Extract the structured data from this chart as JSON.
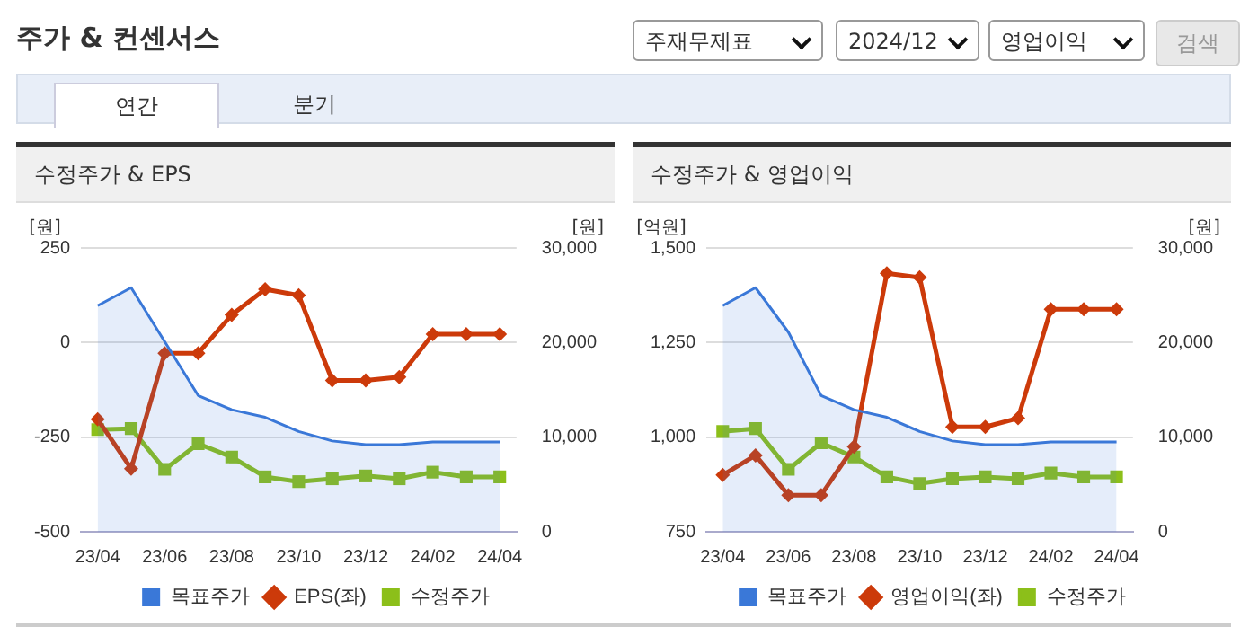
{
  "chart_data": [
    {
      "type": "other",
      "title": "주가 & 컨센서스",
      "annotations": [
        "주재무제표",
        "2024/12",
        "영업이익",
        "검색",
        "연간",
        "분기"
      ]
    },
    {
      "type": "line",
      "title": "수정주가 & EPS",
      "ylabel": "[원]",
      "y2label": "[원]",
      "categories": [
        "23/04",
        null,
        "23/06",
        null,
        "23/08",
        null,
        "23/10",
        null,
        "23/12",
        null,
        "24/02",
        null,
        "24/04"
      ],
      "ylim": [
        -500,
        250
      ],
      "yticks": [
        -500,
        -250,
        0,
        250
      ],
      "y2lim": [
        0,
        30000
      ],
      "y2ticks": [
        0,
        {
          "value": 10000,
          "label": "10,000"
        },
        {
          "value": 20000,
          "label": "20,000"
        },
        {
          "value": 30000,
          "label": "30,000"
        }
      ],
      "grid": "y",
      "legend": "bottom",
      "series": [
        {
          "name": "목표주가",
          "type": "area",
          "axis": "y2",
          "color": "#3a78d8",
          "marker": "none",
          "values": [
            23900,
            25800,
            20100,
            14400,
            12900,
            12100,
            10600,
            9600,
            9200,
            9200,
            9500,
            9500,
            9500
          ]
        },
        {
          "name": "EPS(좌)",
          "type": "line",
          "color": "#cc3a0a",
          "marker": "diamond",
          "values": [
            -203,
            -333,
            -28,
            -28,
            73,
            141,
            125,
            -100,
            -100,
            -91,
            22,
            22,
            22
          ]
        },
        {
          "name": "수정주가",
          "type": "line",
          "axis": "y2",
          "color": "#8cbf1a",
          "marker": "square",
          "values": [
            10800,
            10900,
            6600,
            9300,
            7900,
            5800,
            5300,
            5600,
            5900,
            5600,
            6300,
            5800,
            5800
          ]
        }
      ]
    },
    {
      "type": "line",
      "title": "수정주가 & 영업이익",
      "ylabel": "[억원]",
      "y2label": "[원]",
      "categories": [
        "23/04",
        null,
        "23/06",
        null,
        "23/08",
        null,
        "23/10",
        null,
        "23/12",
        null,
        "24/02",
        null,
        "24/04"
      ],
      "ylim": [
        750,
        1500
      ],
      "yticks": [
        750,
        {
          "value": 1000,
          "label": "1,000"
        },
        {
          "value": 1250,
          "label": "1,250"
        },
        {
          "value": 1500,
          "label": "1,500"
        }
      ],
      "y2lim": [
        0,
        30000
      ],
      "y2ticks": [
        0,
        {
          "value": 10000,
          "label": "10,000"
        },
        {
          "value": 20000,
          "label": "20,000"
        },
        {
          "value": 30000,
          "label": "30,000"
        }
      ],
      "grid": "y",
      "legend": "bottom",
      "series": [
        {
          "name": "목표주가",
          "type": "area",
          "axis": "y2",
          "color": "#3a78d8",
          "marker": "none",
          "values": [
            23900,
            25800,
            21100,
            14400,
            12900,
            12100,
            10600,
            9600,
            9200,
            9200,
            9500,
            9500,
            9500
          ]
        },
        {
          "name": "영업이익(좌)",
          "type": "line",
          "color": "#cc3a0a",
          "marker": "diamond",
          "values": [
            900,
            952,
            847,
            847,
            975,
            1433,
            1422,
            1027,
            1027,
            1050,
            1338,
            1338,
            1338
          ]
        },
        {
          "name": "수정주가",
          "type": "line",
          "axis": "y2",
          "color": "#8cbf1a",
          "marker": "square",
          "values": [
            10600,
            10900,
            6600,
            9400,
            7900,
            5800,
            5100,
            5600,
            5800,
            5600,
            6200,
            5800,
            5800
          ]
        }
      ]
    }
  ]
}
